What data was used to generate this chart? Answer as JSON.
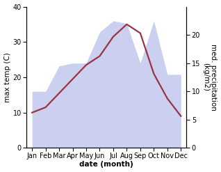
{
  "months": [
    "Jan",
    "Feb",
    "Mar",
    "Apr",
    "May",
    "Jun",
    "Jul",
    "Aug",
    "Sep",
    "Oct",
    "Nov",
    "Dec"
  ],
  "month_positions": [
    0,
    1,
    2,
    3,
    4,
    5,
    6,
    7,
    8,
    9,
    10,
    11
  ],
  "max_temp": [
    10.0,
    11.5,
    15.5,
    19.5,
    23.5,
    26.0,
    31.5,
    35.0,
    32.5,
    21.0,
    14.0,
    9.0
  ],
  "precip": [
    10.0,
    10.0,
    14.5,
    15.0,
    15.0,
    20.5,
    22.5,
    22.0,
    15.0,
    22.5,
    13.0,
    13.0
  ],
  "temp_color": "#993344",
  "precip_color": "#b0b8e8",
  "precip_edge_color": "#aab0e0",
  "precip_alpha": 0.65,
  "bg_color": "#ffffff",
  "left_ylabel": "max temp (C)",
  "right_ylabel": "med. precipitation\n(kg/m2)",
  "xlabel": "date (month)",
  "ylim_left": [
    0,
    40
  ],
  "ylim_right": [
    0,
    25
  ],
  "yticks_left": [
    0,
    10,
    20,
    30,
    40
  ],
  "yticks_right": [
    0,
    5,
    10,
    15,
    20
  ],
  "label_fontsize": 7.5,
  "tick_fontsize": 7,
  "line_width": 1.6,
  "figsize": [
    3.18,
    2.47
  ],
  "dpi": 100
}
